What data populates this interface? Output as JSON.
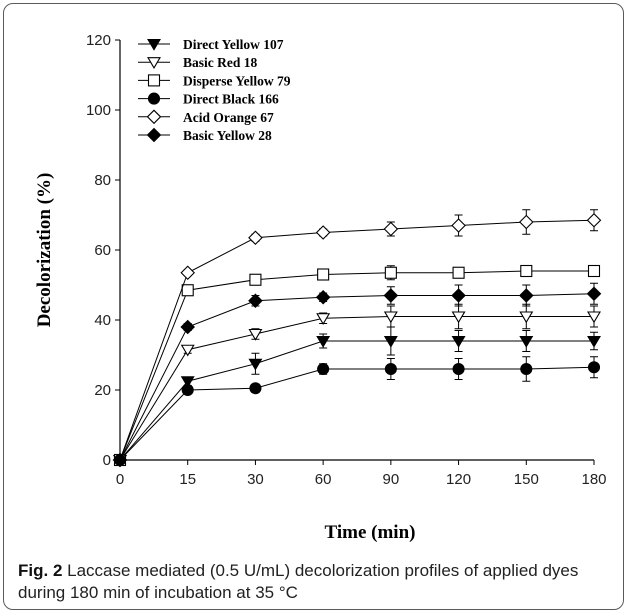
{
  "caption": {
    "label": "Fig. 2",
    "text": "Laccase mediated (0.5 U/mL) decolorization profiles of applied dyes during 180 min of incubation at 35 °C"
  },
  "chart_data": {
    "type": "line",
    "xlabel": "Time (min)",
    "ylabel": "Decolorization (%)",
    "x_categories": [
      "0",
      "15",
      "30",
      "60",
      "90",
      "120",
      "150",
      "180"
    ],
    "y_ticks": [
      "0",
      "20",
      "40",
      "60",
      "80",
      "100",
      "120"
    ],
    "ylim": [
      0,
      120
    ],
    "grid": false,
    "legend_position": "top-left",
    "series": [
      {
        "name": "Direct Yellow 107",
        "marker": "triangle-down-filled",
        "values": [
          0,
          22.5,
          27.5,
          34,
          34,
          34,
          34,
          34
        ],
        "errors": [
          0,
          1.2,
          3,
          2,
          4,
          3,
          3,
          2.5
        ]
      },
      {
        "name": "Basic Red 18",
        "marker": "triangle-down-open",
        "values": [
          0,
          31.5,
          36,
          40.5,
          41,
          41,
          41,
          41
        ],
        "errors": [
          0,
          1,
          1.5,
          1.5,
          3,
          3.5,
          3.5,
          3
        ]
      },
      {
        "name": "Disperse Yellow 79",
        "marker": "square-open",
        "values": [
          0,
          48.5,
          51.5,
          53,
          53.5,
          53.5,
          54,
          54
        ],
        "errors": [
          0,
          0.8,
          1,
          1,
          2,
          1,
          1,
          1
        ]
      },
      {
        "name": "Direct Black 166",
        "marker": "circle-filled",
        "values": [
          0,
          20,
          20.5,
          26,
          26,
          26,
          26,
          26.5
        ],
        "errors": [
          0,
          1,
          1.2,
          1.5,
          3,
          3,
          3.5,
          3
        ]
      },
      {
        "name": "Acid Orange 67",
        "marker": "diamond-open",
        "values": [
          0,
          53.5,
          63.5,
          65,
          66,
          67,
          68,
          68.5
        ],
        "errors": [
          0,
          0.8,
          1,
          1,
          2,
          3,
          3.5,
          3
        ]
      },
      {
        "name": "Basic Yellow 28",
        "marker": "diamond-filled",
        "values": [
          0,
          38,
          45.5,
          46.5,
          47,
          47,
          47,
          47.5
        ],
        "errors": [
          0,
          1,
          1.5,
          1.2,
          2.5,
          3,
          3,
          3
        ]
      }
    ]
  }
}
